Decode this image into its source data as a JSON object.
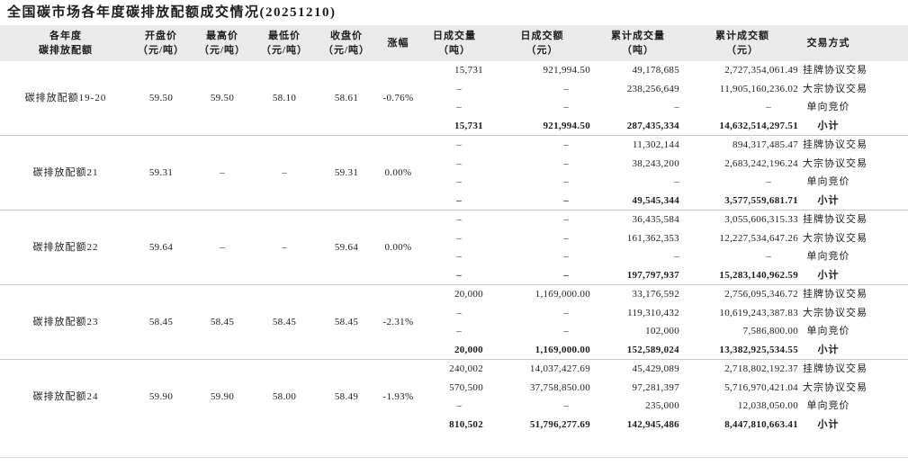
{
  "title": "全国碳市场各年度碳排放配额成交情况(20251210)",
  "colors": {
    "header_bg": "#eaeaea",
    "group_separator": "#c9c9c9",
    "bottom_rule": "#e0e0e0",
    "text": "#1c1c1c"
  },
  "table": {
    "headers": [
      {
        "l1": "各年度",
        "l2": "碳排放配额"
      },
      {
        "l1": "开盘价",
        "l2": "（元/吨）"
      },
      {
        "l1": "最高价",
        "l2": "（元/吨）"
      },
      {
        "l1": "最低价",
        "l2": "（元/吨）"
      },
      {
        "l1": "收盘价",
        "l2": "（元/吨）"
      },
      {
        "l1": "涨幅",
        "l2": ""
      },
      {
        "l1": "日成交量",
        "l2": "（吨）"
      },
      {
        "l1": "日成交额",
        "l2": "（元）"
      },
      {
        "l1": "累计成交量",
        "l2": "（吨）"
      },
      {
        "l1": "累计成交额",
        "l2": "（元）"
      },
      {
        "l1": "交易方式",
        "l2": ""
      }
    ],
    "groups": [
      {
        "name": "碳排放配额19-20",
        "open": "59.50",
        "high": "59.50",
        "low": "58.10",
        "close": "58.61",
        "change": "-0.76%",
        "rows": [
          {
            "daily_volume": "15,731",
            "daily_amount": "921,994.50",
            "cum_volume": "49,178,685",
            "cum_amount": "2,727,354,061.49",
            "method": "挂牌协议交易",
            "subtotal": false
          },
          {
            "daily_volume": "–",
            "daily_amount": "–",
            "cum_volume": "238,256,649",
            "cum_amount": "11,905,160,236.02",
            "method": "大宗协议交易",
            "subtotal": false
          },
          {
            "daily_volume": "–",
            "daily_amount": "–",
            "cum_volume": "–",
            "cum_amount": "–",
            "method": "单向竞价",
            "subtotal": false
          },
          {
            "daily_volume": "15,731",
            "daily_amount": "921,994.50",
            "cum_volume": "287,435,334",
            "cum_amount": "14,632,514,297.51",
            "method": "小计",
            "subtotal": true
          }
        ]
      },
      {
        "name": "碳排放配额21",
        "open": "59.31",
        "high": "–",
        "low": "–",
        "close": "59.31",
        "change": "0.00%",
        "rows": [
          {
            "daily_volume": "–",
            "daily_amount": "–",
            "cum_volume": "11,302,144",
            "cum_amount": "894,317,485.47",
            "method": "挂牌协议交易",
            "subtotal": false
          },
          {
            "daily_volume": "–",
            "daily_amount": "–",
            "cum_volume": "38,243,200",
            "cum_amount": "2,683,242,196.24",
            "method": "大宗协议交易",
            "subtotal": false
          },
          {
            "daily_volume": "–",
            "daily_amount": "–",
            "cum_volume": "–",
            "cum_amount": "–",
            "method": "单向竞价",
            "subtotal": false
          },
          {
            "daily_volume": "–",
            "daily_amount": "–",
            "cum_volume": "49,545,344",
            "cum_amount": "3,577,559,681.71",
            "method": "小计",
            "subtotal": true
          }
        ]
      },
      {
        "name": "碳排放配额22",
        "open": "59.64",
        "high": "–",
        "low": "–",
        "close": "59.64",
        "change": "0.00%",
        "rows": [
          {
            "daily_volume": "–",
            "daily_amount": "–",
            "cum_volume": "36,435,584",
            "cum_amount": "3,055,606,315.33",
            "method": "挂牌协议交易",
            "subtotal": false
          },
          {
            "daily_volume": "–",
            "daily_amount": "–",
            "cum_volume": "161,362,353",
            "cum_amount": "12,227,534,647.26",
            "method": "大宗协议交易",
            "subtotal": false
          },
          {
            "daily_volume": "–",
            "daily_amount": "–",
            "cum_volume": "–",
            "cum_amount": "–",
            "method": "单向竞价",
            "subtotal": false
          },
          {
            "daily_volume": "–",
            "daily_amount": "–",
            "cum_volume": "197,797,937",
            "cum_amount": "15,283,140,962.59",
            "method": "小计",
            "subtotal": true
          }
        ]
      },
      {
        "name": "碳排放配额23",
        "open": "58.45",
        "high": "58.45",
        "low": "58.45",
        "close": "58.45",
        "change": "-2.31%",
        "rows": [
          {
            "daily_volume": "20,000",
            "daily_amount": "1,169,000.00",
            "cum_volume": "33,176,592",
            "cum_amount": "2,756,095,346.72",
            "method": "挂牌协议交易",
            "subtotal": false
          },
          {
            "daily_volume": "–",
            "daily_amount": "–",
            "cum_volume": "119,310,432",
            "cum_amount": "10,619,243,387.83",
            "method": "大宗协议交易",
            "subtotal": false
          },
          {
            "daily_volume": "–",
            "daily_amount": "–",
            "cum_volume": "102,000",
            "cum_amount": "7,586,800.00",
            "method": "单向竞价",
            "subtotal": false
          },
          {
            "daily_volume": "20,000",
            "daily_amount": "1,169,000.00",
            "cum_volume": "152,589,024",
            "cum_amount": "13,382,925,534.55",
            "method": "小计",
            "subtotal": true
          }
        ]
      },
      {
        "name": "碳排放配额24",
        "open": "59.90",
        "high": "59.90",
        "low": "58.00",
        "close": "58.49",
        "change": "-1.93%",
        "rows": [
          {
            "daily_volume": "240,002",
            "daily_amount": "14,037,427.69",
            "cum_volume": "45,429,089",
            "cum_amount": "2,718,802,192.37",
            "method": "挂牌协议交易",
            "subtotal": false
          },
          {
            "daily_volume": "570,500",
            "daily_amount": "37,758,850.00",
            "cum_volume": "97,281,397",
            "cum_amount": "5,716,970,421.04",
            "method": "大宗协议交易",
            "subtotal": false
          },
          {
            "daily_volume": "–",
            "daily_amount": "–",
            "cum_volume": "235,000",
            "cum_amount": "12,038,050.00",
            "method": "单向竞价",
            "subtotal": false
          },
          {
            "daily_volume": "810,502",
            "daily_amount": "51,796,277.69",
            "cum_volume": "142,945,486",
            "cum_amount": "8,447,810,663.41",
            "method": "小计",
            "subtotal": true
          }
        ]
      }
    ]
  }
}
